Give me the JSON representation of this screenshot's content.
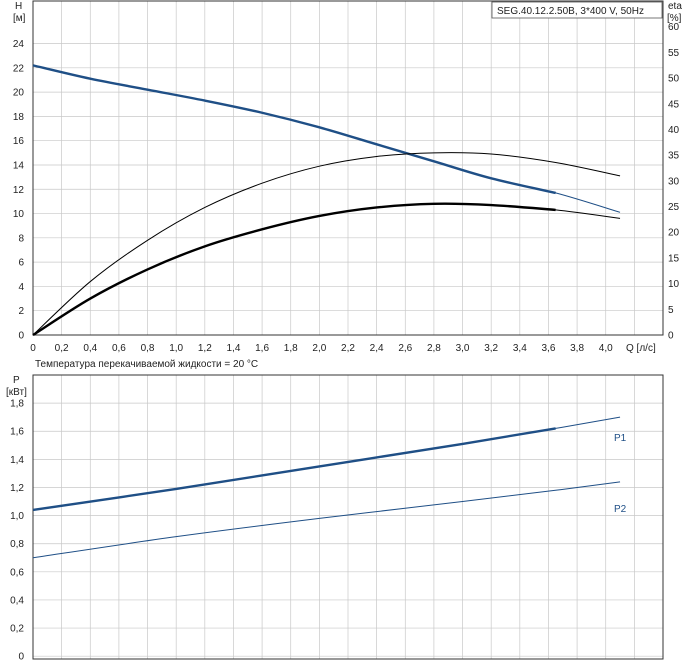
{
  "chart_data": [
    {
      "type": "line",
      "title": "SEG.40.12.2.50B, 3*400 V, 50Hz",
      "xlabel": "Q [л/с]",
      "ylabel": "H [м]",
      "y2label": "eta [%]",
      "xlim": [
        0,
        4.4
      ],
      "ylim": [
        0,
        27.5
      ],
      "y2lim": [
        0,
        65
      ],
      "x_ticks": [
        "0",
        "0,2",
        "0,4",
        "0,6",
        "0,8",
        "1,0",
        "1,2",
        "1,4",
        "1,6",
        "1,8",
        "2,0",
        "2,2",
        "2,4",
        "2,6",
        "2,8",
        "3,0",
        "3,2",
        "3,4",
        "3,6",
        "3,8",
        "4,0"
      ],
      "y_ticks": [
        "0",
        "2",
        "4",
        "6",
        "8",
        "10",
        "12",
        "14",
        "16",
        "18",
        "20",
        "22",
        "24"
      ],
      "y2_ticks": [
        "0",
        "5",
        "10",
        "15",
        "20",
        "25",
        "30",
        "35",
        "40",
        "45",
        "50",
        "55",
        "60"
      ],
      "grid": true,
      "series": [
        {
          "name": "H",
          "axis": "left",
          "color": "#1f4f86",
          "x": [
            0,
            0.4,
            0.8,
            1.2,
            1.6,
            2.0,
            2.4,
            2.8,
            3.2,
            3.65,
            4.1
          ],
          "y": [
            22.2,
            21.1,
            20.2,
            19.3,
            18.3,
            17.1,
            15.7,
            14.3,
            12.9,
            11.7,
            10.1
          ],
          "bold_until_x": 3.65
        },
        {
          "name": "",
          "axis": "left",
          "color": "#000000",
          "x": [
            0,
            0.4,
            0.8,
            1.2,
            1.6,
            2.0,
            2.4,
            2.8,
            3.2,
            3.65,
            4.1
          ],
          "y": [
            0,
            3.0,
            5.4,
            7.3,
            8.7,
            9.8,
            10.5,
            10.8,
            10.7,
            10.3,
            9.6
          ],
          "bold_until_x": 3.65
        },
        {
          "name": "",
          "axis": "left",
          "color": "#000000",
          "x": [
            0,
            0.4,
            0.8,
            1.2,
            1.6,
            2.0,
            2.4,
            2.8,
            3.2,
            3.65,
            4.1
          ],
          "y": [
            0,
            4.4,
            7.8,
            10.5,
            12.5,
            13.9,
            14.7,
            15.0,
            14.9,
            14.2,
            13.1
          ],
          "bold_until_x": 0
        }
      ]
    },
    {
      "type": "line",
      "note": "Температура перекачиваемой жидкости = 20 °C",
      "ylabel": "P [кВт]",
      "xlim": [
        0,
        4.4
      ],
      "ylim": [
        -0.02,
        2.0
      ],
      "y_ticks": [
        "0",
        "0,2",
        "0,4",
        "0,6",
        "0,8",
        "1,0",
        "1,2",
        "1,4",
        "1,6",
        "1,8"
      ],
      "grid": true,
      "series": [
        {
          "name": "P1",
          "color": "#1f4f86",
          "x": [
            0,
            1.0,
            2.0,
            3.0,
            3.65,
            4.1
          ],
          "y": [
            1.04,
            1.19,
            1.35,
            1.51,
            1.62,
            1.7
          ],
          "bold_until_x": 3.65
        },
        {
          "name": "P2",
          "color": "#1f4f86",
          "x": [
            0,
            1.0,
            2.0,
            3.0,
            3.65,
            4.1
          ],
          "y": [
            0.7,
            0.85,
            0.98,
            1.1,
            1.18,
            1.24
          ],
          "bold_until_x": 0
        }
      ]
    }
  ]
}
